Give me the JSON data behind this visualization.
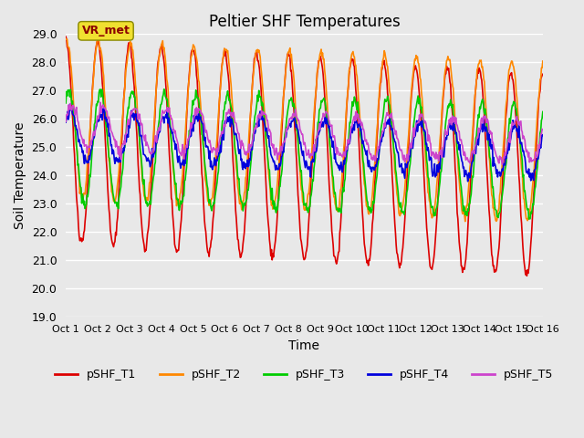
{
  "title": "Peltier SHF Temperatures",
  "ylabel": "Soil Temperature",
  "xlabel": "Time",
  "ylim": [
    19.0,
    29.0
  ],
  "yticks": [
    19.0,
    20.0,
    21.0,
    22.0,
    23.0,
    24.0,
    25.0,
    26.0,
    27.0,
    28.0,
    29.0
  ],
  "xtick_labels": [
    "Oct 1",
    "Oct 2",
    "Oct 3",
    "Oct 4",
    "Oct 5",
    "Oct 6",
    "Oct 7",
    "Oct 8",
    "Oct 9",
    "Oct 10",
    "Oct 11",
    "Oct 12",
    "Oct 13",
    "Oct 14",
    "Oct 15",
    "Oct 16"
  ],
  "n_days": 15,
  "annotation_text": "VR_met",
  "bg_color": "#e8e8e8",
  "plot_bg_color": "#e8e8e8",
  "grid_color": "#ffffff",
  "linewidth": 1.2,
  "series": [
    {
      "name": "pSHF_T1",
      "color": "#dd0000"
    },
    {
      "name": "pSHF_T2",
      "color": "#ff8800"
    },
    {
      "name": "pSHF_T3",
      "color": "#00cc00"
    },
    {
      "name": "pSHF_T4",
      "color": "#0000dd"
    },
    {
      "name": "pSHF_T5",
      "color": "#cc44cc"
    }
  ]
}
